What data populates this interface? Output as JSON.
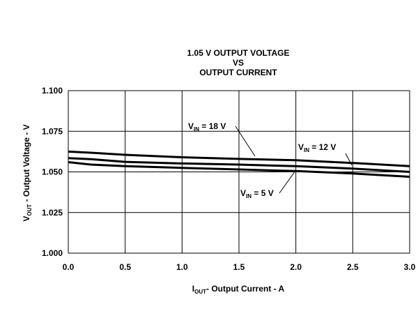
{
  "chart_data": {
    "type": "line",
    "title_lines": [
      "1.05 V OUTPUT VOLTAGE",
      "VS",
      "OUTPUT CURRENT"
    ],
    "xlabel": {
      "main": "I",
      "sub": "OUT",
      "rest": "- Output Current - A"
    },
    "ylabel": {
      "main": "V",
      "sub": "OUT",
      "rest": " - Output Voltage - V"
    },
    "xlim": [
      0,
      3.0
    ],
    "ylim": [
      1.0,
      1.1
    ],
    "x_ticks": [
      "0.0",
      "0.5",
      "1.0",
      "1.5",
      "2.0",
      "2.5",
      "3.0"
    ],
    "y_ticks": [
      "1.000",
      "1.025",
      "1.050",
      "1.075",
      "1.100"
    ],
    "grid": true,
    "series": [
      {
        "name": "VIN = 18 V",
        "label": {
          "main": "V",
          "sub": "IN",
          "rest": " = 18 V"
        },
        "x": [
          0.0,
          0.2,
          0.5,
          1.0,
          1.5,
          2.0,
          2.5,
          3.0
        ],
        "y": [
          1.0625,
          1.0618,
          1.0605,
          1.059,
          1.058,
          1.0572,
          1.0555,
          1.0535
        ]
      },
      {
        "name": "VIN = 12 V",
        "label": {
          "main": "V",
          "sub": "IN",
          "rest": " = 12 V"
        },
        "x": [
          0.0,
          0.2,
          0.5,
          1.0,
          1.5,
          2.0,
          2.5,
          3.0
        ],
        "y": [
          1.0585,
          1.0578,
          1.0562,
          1.0552,
          1.0545,
          1.0535,
          1.052,
          1.05
        ]
      },
      {
        "name": "VIN = 5 V",
        "label": {
          "main": "V",
          "sub": "IN",
          "rest": " = 5 V"
        },
        "x": [
          0.0,
          0.2,
          0.5,
          1.0,
          1.5,
          2.0,
          2.5,
          3.0
        ],
        "y": [
          1.056,
          1.0545,
          1.0535,
          1.0525,
          1.0515,
          1.0505,
          1.049,
          1.047
        ]
      }
    ]
  }
}
